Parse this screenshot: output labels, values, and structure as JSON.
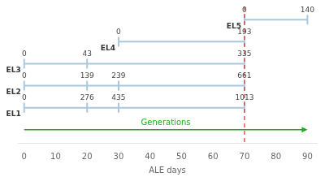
{
  "chart_data": {
    "type": "timeline",
    "x_label": "ALE days",
    "xlim": [
      -2,
      93
    ],
    "xticks": [
      0,
      10,
      20,
      30,
      40,
      50,
      60,
      70,
      80,
      90
    ],
    "grid": false,
    "tick_labels": "x",
    "data_labels": true,
    "marker": "line",
    "series": [
      {
        "name": "EL1",
        "color": "#aac8dc",
        "x": [
          0,
          20,
          30,
          70
        ],
        "values": [
          0,
          276,
          435,
          1013
        ]
      },
      {
        "name": "EL2",
        "color": "#aac8dc",
        "x": [
          0,
          20,
          30,
          70
        ],
        "values": [
          0,
          139,
          239,
          661
        ]
      },
      {
        "name": "EL3",
        "color": "#aac8dc",
        "x": [
          0,
          20,
          70
        ],
        "values": [
          0,
          43,
          335
        ]
      },
      {
        "name": "EL4",
        "color": "#aac8dc",
        "x": [
          30,
          70
        ],
        "values": [
          0,
          193
        ]
      },
      {
        "name": "EL5",
        "color": "#aac8dc",
        "x": [
          70,
          90
        ],
        "values": [
          0,
          140
        ]
      }
    ],
    "annotations": [
      {
        "type": "vline",
        "x": 70,
        "color": "#cc3333"
      },
      {
        "type": "arrow",
        "text": "Generations",
        "x": [
          0,
          90
        ],
        "color": "#22aa22"
      }
    ]
  }
}
